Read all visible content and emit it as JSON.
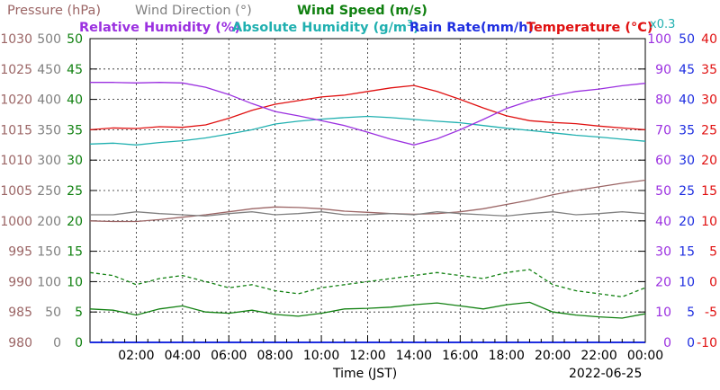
{
  "chart_data": {
    "type": "line",
    "legend_row1": [
      {
        "label": "Pressure (hPa)",
        "color": "#9b6565"
      },
      {
        "label": "Wind Direction (°)",
        "color": "#808080"
      },
      {
        "label": "Wind Speed (m/s)",
        "color": "#108010"
      }
    ],
    "legend_row2": [
      {
        "label": "Relative Humidity (%)",
        "color": "#9b30e0"
      },
      {
        "label": "Absolute Humidity (g/m",
        "sup": "3",
        "tail": ")",
        "color": "#20b0b0"
      },
      {
        "label": "Rain Rate(mm/h)",
        "color": "#1e2ee0"
      },
      {
        "label": "Temperature (°C)",
        "color": "#e01010"
      }
    ],
    "scale_note": {
      "text": "x0.3",
      "color": "#20b0b0"
    },
    "xlabel": "Time (JST)",
    "date": "2022-06-25",
    "x_ticks": [
      "02:00",
      "04:00",
      "06:00",
      "08:00",
      "10:00",
      "12:00",
      "14:00",
      "16:00",
      "18:00",
      "20:00",
      "22:00",
      "00:00"
    ],
    "x_tick_hours": [
      2,
      4,
      6,
      8,
      10,
      12,
      14,
      16,
      18,
      20,
      22,
      24
    ],
    "xlim_hours": [
      0,
      24
    ],
    "left_axes": [
      {
        "name": "Pressure (hPa)",
        "color": "#9b6565",
        "ticks": [
          "980",
          "985",
          "990",
          "995",
          "1000",
          "1005",
          "1010",
          "1015",
          "1020",
          "1025",
          "1030"
        ],
        "ylim": [
          980,
          1030
        ]
      },
      {
        "name": "Wind Direction (°)",
        "color": "#808080",
        "ticks": [
          "0",
          "50",
          "100",
          "150",
          "200",
          "250",
          "300",
          "350",
          "400",
          "450",
          "500"
        ],
        "ylim": [
          0,
          500
        ]
      },
      {
        "name": "Wind Speed (m/s)",
        "color": "#108010",
        "ticks": [
          "0",
          "5",
          "10",
          "15",
          "20",
          "25",
          "30",
          "35",
          "40",
          "45",
          "50"
        ],
        "ylim": [
          0,
          50
        ]
      }
    ],
    "right_axes": [
      {
        "name": "Relative Humidity (%)",
        "color": "#9b30e0",
        "ticks": [
          "0",
          "10",
          "20",
          "30",
          "40",
          "50",
          "60",
          "70",
          "80",
          "90",
          "100"
        ],
        "ylim": [
          0,
          100
        ]
      },
      {
        "name": "Rain Rate (mm/h)",
        "color": "#1e2ee0",
        "ticks": [
          "0",
          "5",
          "10",
          "15",
          "20",
          "25",
          "30",
          "35",
          "40",
          "45",
          "50"
        ],
        "ylim": [
          0,
          50
        ]
      },
      {
        "name": "Temperature (°C)",
        "color": "#e01010",
        "ticks": [
          "-10",
          "-5",
          "0",
          "5",
          "10",
          "15",
          "20",
          "25",
          "30",
          "35",
          "40"
        ],
        "ylim": [
          -10,
          40
        ]
      }
    ],
    "series": [
      {
        "name": "Temperature (°C)",
        "color": "#e01010",
        "axis": "temperature",
        "x_hours": [
          0,
          1,
          2,
          3,
          4,
          5,
          6,
          7,
          8,
          9,
          10,
          11,
          12,
          13,
          14,
          15,
          16,
          17,
          18,
          19,
          20,
          21,
          22,
          23,
          24
        ],
        "values": [
          25.0,
          25.3,
          25.2,
          25.5,
          25.4,
          25.8,
          26.9,
          28.2,
          29.2,
          29.8,
          30.4,
          30.7,
          31.3,
          31.9,
          32.3,
          31.3,
          30.0,
          28.6,
          27.3,
          26.5,
          26.2,
          26.0,
          25.6,
          25.3,
          25.0
        ]
      },
      {
        "name": "Absolute Humidity (x0.3)",
        "color": "#20b0b0",
        "axis": "relative_humidity",
        "x_hours": [
          0,
          1,
          2,
          3,
          4,
          5,
          6,
          7,
          8,
          9,
          10,
          11,
          12,
          13,
          14,
          15,
          16,
          17,
          18,
          19,
          20,
          21,
          22,
          23,
          24
        ],
        "values": [
          65.3,
          65.6,
          65.0,
          65.8,
          66.4,
          67.3,
          68.6,
          70.0,
          71.9,
          72.8,
          73.5,
          74.0,
          74.4,
          74.0,
          73.4,
          72.8,
          72.3,
          71.4,
          70.5,
          69.8,
          69.0,
          68.2,
          67.6,
          66.9,
          66.2
        ]
      },
      {
        "name": "Relative Humidity (%)",
        "color": "#9b30e0",
        "axis": "relative_humidity",
        "x_hours": [
          0,
          1,
          2,
          3,
          4,
          5,
          6,
          7,
          8,
          9,
          10,
          11,
          12,
          13,
          14,
          15,
          16,
          17,
          18,
          19,
          20,
          21,
          22,
          23,
          24
        ],
        "values": [
          85.6,
          85.6,
          85.4,
          85.6,
          85.4,
          84.0,
          81.6,
          78.6,
          76.0,
          74.6,
          73.0,
          71.4,
          69.2,
          66.9,
          65.0,
          67.0,
          70.0,
          73.4,
          77.0,
          79.5,
          81.2,
          82.6,
          83.4,
          84.5,
          85.3
        ]
      },
      {
        "name": "Pressure (hPa)",
        "color": "#9b6565",
        "axis": "pressure",
        "x_hours": [
          0,
          1,
          2,
          3,
          4,
          5,
          6,
          7,
          8,
          9,
          10,
          11,
          12,
          13,
          14,
          15,
          16,
          17,
          18,
          19,
          20,
          21,
          22,
          23,
          24
        ],
        "values": [
          1000.0,
          999.9,
          999.9,
          1000.2,
          1000.6,
          1001.0,
          1001.5,
          1002.0,
          1002.3,
          1002.2,
          1002.0,
          1001.6,
          1001.4,
          1001.2,
          1001.1,
          1001.2,
          1001.5,
          1002.0,
          1002.7,
          1003.4,
          1004.3,
          1005.0,
          1005.6,
          1006.2,
          1006.7
        ]
      },
      {
        "name": "Wind Direction (°)",
        "color": "#808080",
        "axis": "wind_direction",
        "x_hours": [
          0,
          1,
          2,
          3,
          4,
          5,
          6,
          7,
          8,
          9,
          10,
          11,
          12,
          13,
          14,
          15,
          16,
          17,
          18,
          19,
          20,
          21,
          22,
          23,
          24
        ],
        "values": [
          210,
          210,
          215,
          212,
          210,
          208,
          212,
          215,
          210,
          212,
          215,
          210,
          210,
          212,
          210,
          215,
          212,
          210,
          208,
          212,
          215,
          210,
          212,
          215,
          212
        ]
      },
      {
        "name": "Wind Speed gust (m/s)",
        "color": "#108010",
        "dashed": true,
        "axis": "wind_speed",
        "x_hours": [
          0,
          1,
          2,
          3,
          4,
          5,
          6,
          7,
          8,
          9,
          10,
          11,
          12,
          13,
          14,
          15,
          16,
          17,
          18,
          19,
          20,
          21,
          22,
          23,
          24
        ],
        "values": [
          11.5,
          11.0,
          9.5,
          10.5,
          11.0,
          10.0,
          9.0,
          9.5,
          8.5,
          8.0,
          9.0,
          9.5,
          10.0,
          10.5,
          11.0,
          11.5,
          11.0,
          10.5,
          11.5,
          12.0,
          9.5,
          8.5,
          8.0,
          7.5,
          9.0
        ]
      },
      {
        "name": "Wind Speed (m/s)",
        "color": "#108010",
        "axis": "wind_speed",
        "x_hours": [
          0,
          1,
          2,
          3,
          4,
          5,
          6,
          7,
          8,
          9,
          10,
          11,
          12,
          13,
          14,
          15,
          16,
          17,
          18,
          19,
          20,
          21,
          22,
          23,
          24
        ],
        "values": [
          5.5,
          5.3,
          4.5,
          5.5,
          6.0,
          5.0,
          4.8,
          5.3,
          4.6,
          4.3,
          4.8,
          5.5,
          5.6,
          5.8,
          6.2,
          6.5,
          6.0,
          5.5,
          6.2,
          6.6,
          5.0,
          4.5,
          4.2,
          4.0,
          4.7
        ]
      },
      {
        "name": "Rain Rate (mm/h)",
        "color": "#1e2ee0",
        "axis": "rain_rate",
        "x_hours": [
          0,
          24
        ],
        "values": [
          0,
          0
        ]
      }
    ],
    "grid": true
  }
}
